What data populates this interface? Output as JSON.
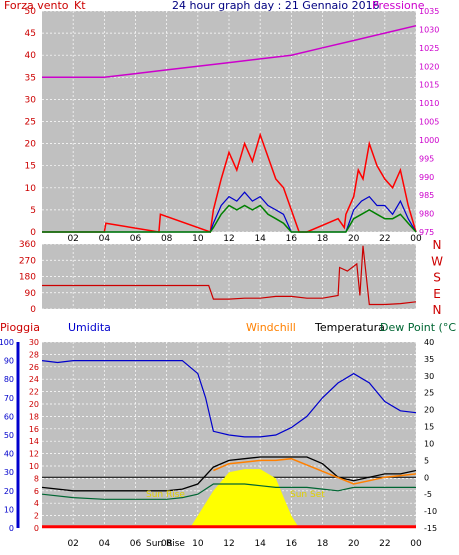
{
  "header": {
    "wind_label": "Forza vento",
    "wind_unit": "Kt",
    "title": "24 hour graph day : 21 Gennaio 2016",
    "pressure_label": "Pressione"
  },
  "panel3_labels": {
    "rain": "Pioggia",
    "humidity": "Umidita",
    "windchill": "Windchill",
    "temperature": "Temperatura",
    "dewpoint": "Dew Point (°C"
  },
  "annotations": {
    "sun_rise": "Sun Rise",
    "sun_set": "Sun Set"
  },
  "colors": {
    "wind_speed": "#ff0000",
    "wind_gust": "#0000cc",
    "wind_avg": "#008000",
    "pressure": "#cc00cc",
    "direction": "#cc0000",
    "humidity": "#0000cc",
    "temperature": "#000000",
    "windchill": "#ff8000",
    "dewpoint": "#006633",
    "solar": "#ffff00",
    "rain": "#ff0000",
    "plot_bg": "#c0c0c0"
  },
  "chart_data": [
    {
      "type": "line",
      "x_ticks": [
        "02",
        "04",
        "06",
        "08",
        "10",
        "12",
        "14",
        "16",
        "18",
        "20",
        "22",
        "00"
      ],
      "y_left_ticks": [
        0,
        5,
        10,
        15,
        20,
        25,
        30,
        35,
        40,
        45,
        50
      ],
      "y_right_ticks": [
        975,
        980,
        985,
        990,
        995,
        1000,
        1005,
        1010,
        1015,
        1020,
        1025,
        1030,
        1035
      ],
      "ylim_left": [
        0,
        50
      ],
      "ylim_right": [
        975,
        1035
      ],
      "xlim": [
        0,
        24
      ],
      "series": [
        {
          "name": "Forza vento",
          "axis": "left",
          "x": [
            0,
            4,
            4.1,
            7.5,
            7.6,
            10.8,
            11,
            11.5,
            12,
            12.5,
            13,
            13.5,
            14,
            14.5,
            15,
            15.5,
            16,
            16.5,
            17,
            19,
            19.4,
            19.5,
            20,
            20.3,
            20.6,
            21,
            21.5,
            22,
            22.5,
            23,
            23.5,
            24
          ],
          "y": [
            0,
            0,
            2,
            0,
            4,
            0,
            5,
            12,
            18,
            14,
            20,
            16,
            22,
            17,
            12,
            10,
            5,
            0,
            0,
            3,
            1,
            4,
            8,
            14,
            12,
            20,
            15,
            12,
            10,
            14,
            6,
            0
          ]
        },
        {
          "name": "gust",
          "axis": "left",
          "x": [
            0,
            10.8,
            11,
            11.5,
            12,
            12.5,
            13,
            13.5,
            14,
            14.5,
            15,
            15.5,
            16,
            19.5,
            20,
            20.5,
            21,
            21.5,
            22,
            22.5,
            23,
            23.5,
            24
          ],
          "y": [
            0,
            0,
            2,
            6,
            8,
            7,
            9,
            7,
            8,
            6,
            5,
            4,
            0,
            0,
            5,
            7,
            8,
            6,
            6,
            4,
            7,
            3,
            0
          ]
        },
        {
          "name": "avg",
          "axis": "left",
          "x": [
            0,
            10.8,
            11,
            11.5,
            12,
            12.5,
            13,
            13.5,
            14,
            14.5,
            15,
            15.5,
            16,
            19.5,
            20,
            20.5,
            21,
            21.5,
            22,
            22.5,
            23,
            23.5,
            24
          ],
          "y": [
            0,
            0,
            1,
            4,
            6,
            5,
            6,
            5,
            6,
            4,
            3,
            2,
            0,
            0,
            3,
            4,
            5,
            4,
            3,
            3,
            4,
            2,
            0
          ]
        },
        {
          "name": "Pressione",
          "axis": "right",
          "x": [
            0,
            2,
            4,
            6,
            8,
            10,
            12,
            14,
            16,
            18,
            20,
            22,
            24
          ],
          "y": [
            1017,
            1017,
            1017,
            1018,
            1019,
            1020,
            1021,
            1022,
            1023,
            1025,
            1027,
            1029,
            1031
          ]
        }
      ]
    },
    {
      "type": "line",
      "y_ticks": [
        0,
        90,
        180,
        270,
        360
      ],
      "right_labels": [
        "N",
        "W",
        "S",
        "E",
        "N"
      ],
      "ylim": [
        0,
        360
      ],
      "xlim": [
        0,
        24
      ],
      "series": [
        {
          "name": "direction",
          "x": [
            0,
            10.7,
            11,
            12,
            13,
            14,
            15,
            16,
            17,
            18,
            19,
            19.1,
            19.6,
            20.2,
            20.4,
            20.6,
            21,
            22,
            23,
            24
          ],
          "y": [
            130,
            130,
            55,
            55,
            60,
            60,
            70,
            70,
            60,
            60,
            75,
            230,
            210,
            250,
            75,
            350,
            25,
            25,
            30,
            40
          ]
        }
      ]
    },
    {
      "type": "line",
      "x_ticks": [
        "02",
        "04",
        "06",
        "08",
        "10",
        "12",
        "14",
        "16",
        "18",
        "20",
        "22",
        "00"
      ],
      "y_rain_ticks": [
        0,
        2,
        4,
        6,
        8,
        10,
        12,
        14,
        16,
        18,
        20,
        22,
        24,
        26,
        28,
        30
      ],
      "y_hum_ticks": [
        0,
        10,
        20,
        30,
        40,
        50,
        60,
        70,
        80,
        90,
        100
      ],
      "y_temp_ticks": [
        -15,
        -10,
        -5,
        0,
        5,
        10,
        15,
        20,
        25,
        30,
        35,
        40
      ],
      "ylim_rain": [
        0,
        30
      ],
      "ylim_hum": [
        0,
        100
      ],
      "ylim_temp": [
        -15,
        40
      ],
      "xlim": [
        0,
        24
      ],
      "series": [
        {
          "name": "Umidita",
          "axis": "hum",
          "x": [
            0,
            1,
            2,
            4,
            6,
            8,
            9,
            10,
            10.5,
            11,
            12,
            13,
            14,
            15,
            16,
            17,
            18,
            19,
            20,
            21,
            22,
            23,
            24
          ],
          "y": [
            90,
            89,
            90,
            90,
            90,
            90,
            90,
            83,
            70,
            52,
            50,
            49,
            49,
            50,
            54,
            60,
            70,
            78,
            83,
            78,
            68,
            63,
            62
          ]
        },
        {
          "name": "Temperatura",
          "axis": "temp",
          "x": [
            0,
            2,
            4,
            6,
            8,
            9,
            10,
            11,
            12,
            13,
            14,
            15,
            16,
            17,
            18,
            19,
            20,
            21,
            22,
            23,
            24
          ],
          "y": [
            -3,
            -4,
            -4,
            -4,
            -4,
            -3.5,
            -2,
            3,
            5,
            5.5,
            6,
            6,
            6,
            6,
            4,
            0,
            -1,
            0,
            1,
            1,
            2
          ]
        },
        {
          "name": "Windchill",
          "axis": "temp",
          "x": [
            11,
            12,
            13,
            14,
            15,
            16,
            20,
            21,
            22,
            23,
            24
          ],
          "y": [
            2,
            4,
            4.5,
            5,
            5,
            5.5,
            -2,
            -1,
            0,
            0.5,
            1
          ]
        },
        {
          "name": "Dew Point",
          "axis": "temp",
          "x": [
            0,
            2,
            4,
            6,
            8,
            9,
            10,
            11,
            12,
            13,
            14,
            15,
            16,
            17,
            18,
            19,
            20,
            21,
            22,
            23,
            24
          ],
          "y": [
            -5,
            -6,
            -6.5,
            -6.5,
            -6.5,
            -6,
            -5,
            -2,
            -2,
            -2,
            -2.5,
            -3,
            -3,
            -3,
            -3.5,
            -4,
            -3,
            -3,
            -3,
            -3,
            -3
          ]
        },
        {
          "name": "solar",
          "axis": "rain",
          "x": [
            9.5,
            10,
            11,
            12,
            13,
            14,
            15,
            15.5,
            16,
            16.5
          ],
          "y": [
            0,
            2,
            6,
            9,
            9.5,
            9.5,
            8,
            5,
            2,
            0
          ]
        },
        {
          "name": "Pioggia",
          "axis": "rain",
          "x": [
            0,
            24
          ],
          "y": [
            0.2,
            0.2
          ]
        }
      ]
    }
  ]
}
